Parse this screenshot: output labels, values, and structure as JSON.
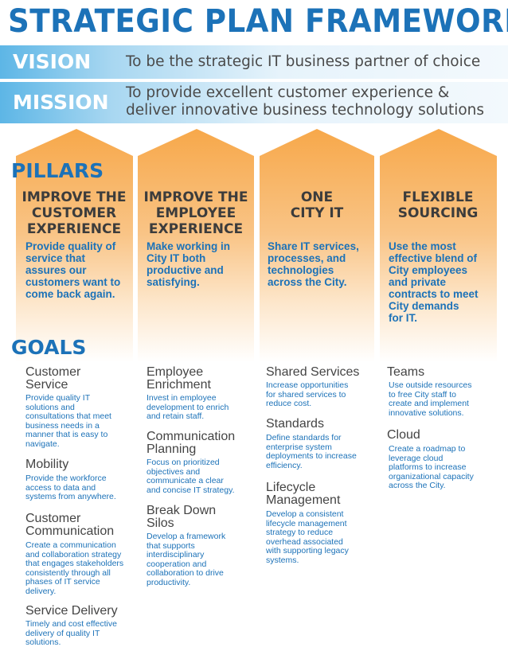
{
  "title": "STRATEGIC PLAN FRAMEWORK",
  "vision": {
    "label": "VISION",
    "text": "To be the strategic IT business partner of choice"
  },
  "mission": {
    "label": "MISSION",
    "text_line1": "To provide excellent customer experience &",
    "text_line2": "deliver innovative business technology solutions"
  },
  "pillars_label": "PILLARS",
  "goals_label": "GOALS",
  "colors": {
    "blue": "#1c72b8",
    "orange": "#f7a84a",
    "band_light": "#a8d7f1"
  },
  "pillars": [
    {
      "title": [
        "IMPROVE THE",
        "CUSTOMER",
        "EXPERIENCE"
      ],
      "desc": [
        "Provide quality of",
        "service that",
        "assures our",
        "customers want to",
        "come back again."
      ]
    },
    {
      "title": [
        "IMPROVE THE",
        "EMPLOYEE",
        "EXPERIENCE"
      ],
      "desc": [
        "Make working in",
        "City IT both",
        "productive and",
        "satisfying."
      ]
    },
    {
      "title": [
        "ONE",
        "CITY IT"
      ],
      "desc": [
        "Share IT services,",
        "processes, and",
        "technologies",
        "across the City."
      ]
    },
    {
      "title": [
        "FLEXIBLE",
        "SOURCING"
      ],
      "desc": [
        "Use the most",
        "effective blend of",
        "City employees",
        "and private",
        "contracts to meet",
        "City demands",
        "for IT."
      ]
    }
  ],
  "goals": [
    [
      {
        "title": [
          "Customer",
          "Service"
        ],
        "desc": [
          "Provide quality IT",
          "solutions and",
          "consultations that meet",
          "business needs in a",
          "manner that is easy to",
          "navigate."
        ]
      },
      {
        "title": [
          "Mobility"
        ],
        "desc": [
          "Provide the workforce",
          "access to data and",
          "systems from anywhere."
        ]
      },
      {
        "title": [
          "Customer",
          "Communication"
        ],
        "desc": [
          "Create a communication",
          "and collaboration strategy",
          "that engages stakeholders",
          "consistently through all",
          "phases of IT service",
          "delivery."
        ]
      },
      {
        "title": [
          "Service Delivery"
        ],
        "desc": [
          "Timely and cost effective",
          "delivery of quality IT",
          "solutions."
        ]
      }
    ],
    [
      {
        "title": [
          "Employee",
          "Enrichment"
        ],
        "desc": [
          "Invest in employee",
          "development to enrich",
          "and retain staff."
        ]
      },
      {
        "title": [
          "Communication",
          "Planning"
        ],
        "desc": [
          "Focus on prioritized",
          "objectives and",
          "communicate a clear",
          "and concise IT strategy."
        ]
      },
      {
        "title": [
          "Break Down",
          "Silos"
        ],
        "desc": [
          "Develop a framework",
          "that supports",
          "interdisciplinary",
          "cooperation and",
          "collaboration to drive",
          "productivity."
        ]
      }
    ],
    [
      {
        "title": [
          "Shared Services"
        ],
        "desc": [
          "Increase opportunities",
          "for shared services to",
          "reduce cost."
        ]
      },
      {
        "title": [
          "Standards"
        ],
        "desc": [
          "Define standards for",
          "enterprise system",
          "deployments to increase",
          "efficiency."
        ]
      },
      {
        "title": [
          "Lifecycle",
          "Management"
        ],
        "desc": [
          "Develop a consistent",
          "lifecycle management",
          "strategy to reduce",
          "overhead associated",
          "with supporting legacy",
          "systems."
        ]
      }
    ],
    [
      {
        "title": [
          "Teams"
        ],
        "desc": [
          "Use outside resources",
          "to free City staff to",
          "create and implement",
          "innovative solutions."
        ]
      },
      {
        "title": [
          "Cloud"
        ],
        "desc": [
          "Create a roadmap to",
          "leverage cloud",
          "platforms to increase",
          "organizational capacity",
          "across the City."
        ]
      }
    ]
  ]
}
